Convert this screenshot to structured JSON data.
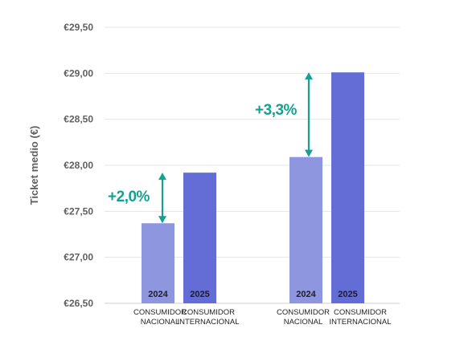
{
  "chart_data": {
    "type": "bar",
    "ylabel": "Ticket medio (€)",
    "ylim": [
      26.5,
      29.5
    ],
    "yticks": [
      26.5,
      27.0,
      27.5,
      28.0,
      28.5,
      29.0,
      29.5
    ],
    "ytick_labels": [
      "€26,50",
      "€27,00",
      "€27,50",
      "€28,00",
      "€28,50",
      "€29,00",
      "€29,50"
    ],
    "grid": true,
    "categories": [
      [
        "CONSUMIDOR",
        "NACIONAL"
      ],
      [
        "CONSUMIDOR",
        "INTERNACIONAL"
      ],
      [
        "CONSUMIDOR",
        "NACIONAL"
      ],
      [
        "CONSUMIDOR",
        "INTERNACIONAL"
      ]
    ],
    "bars": [
      {
        "year": "2024",
        "value": 27.37,
        "color": "#8f96e0"
      },
      {
        "year": "2025",
        "value": 27.92,
        "color": "#646dd5"
      },
      {
        "year": "2024",
        "value": 28.09,
        "color": "#8f96e0"
      },
      {
        "year": "2025",
        "value": 29.01,
        "color": "#646dd5"
      }
    ],
    "annotations": [
      {
        "text": "+2,0%",
        "from": 27.37,
        "to": 27.92,
        "color": "#15a191"
      },
      {
        "text": "+3,3%",
        "from": 28.09,
        "to": 29.01,
        "color": "#15a191"
      }
    ]
  }
}
